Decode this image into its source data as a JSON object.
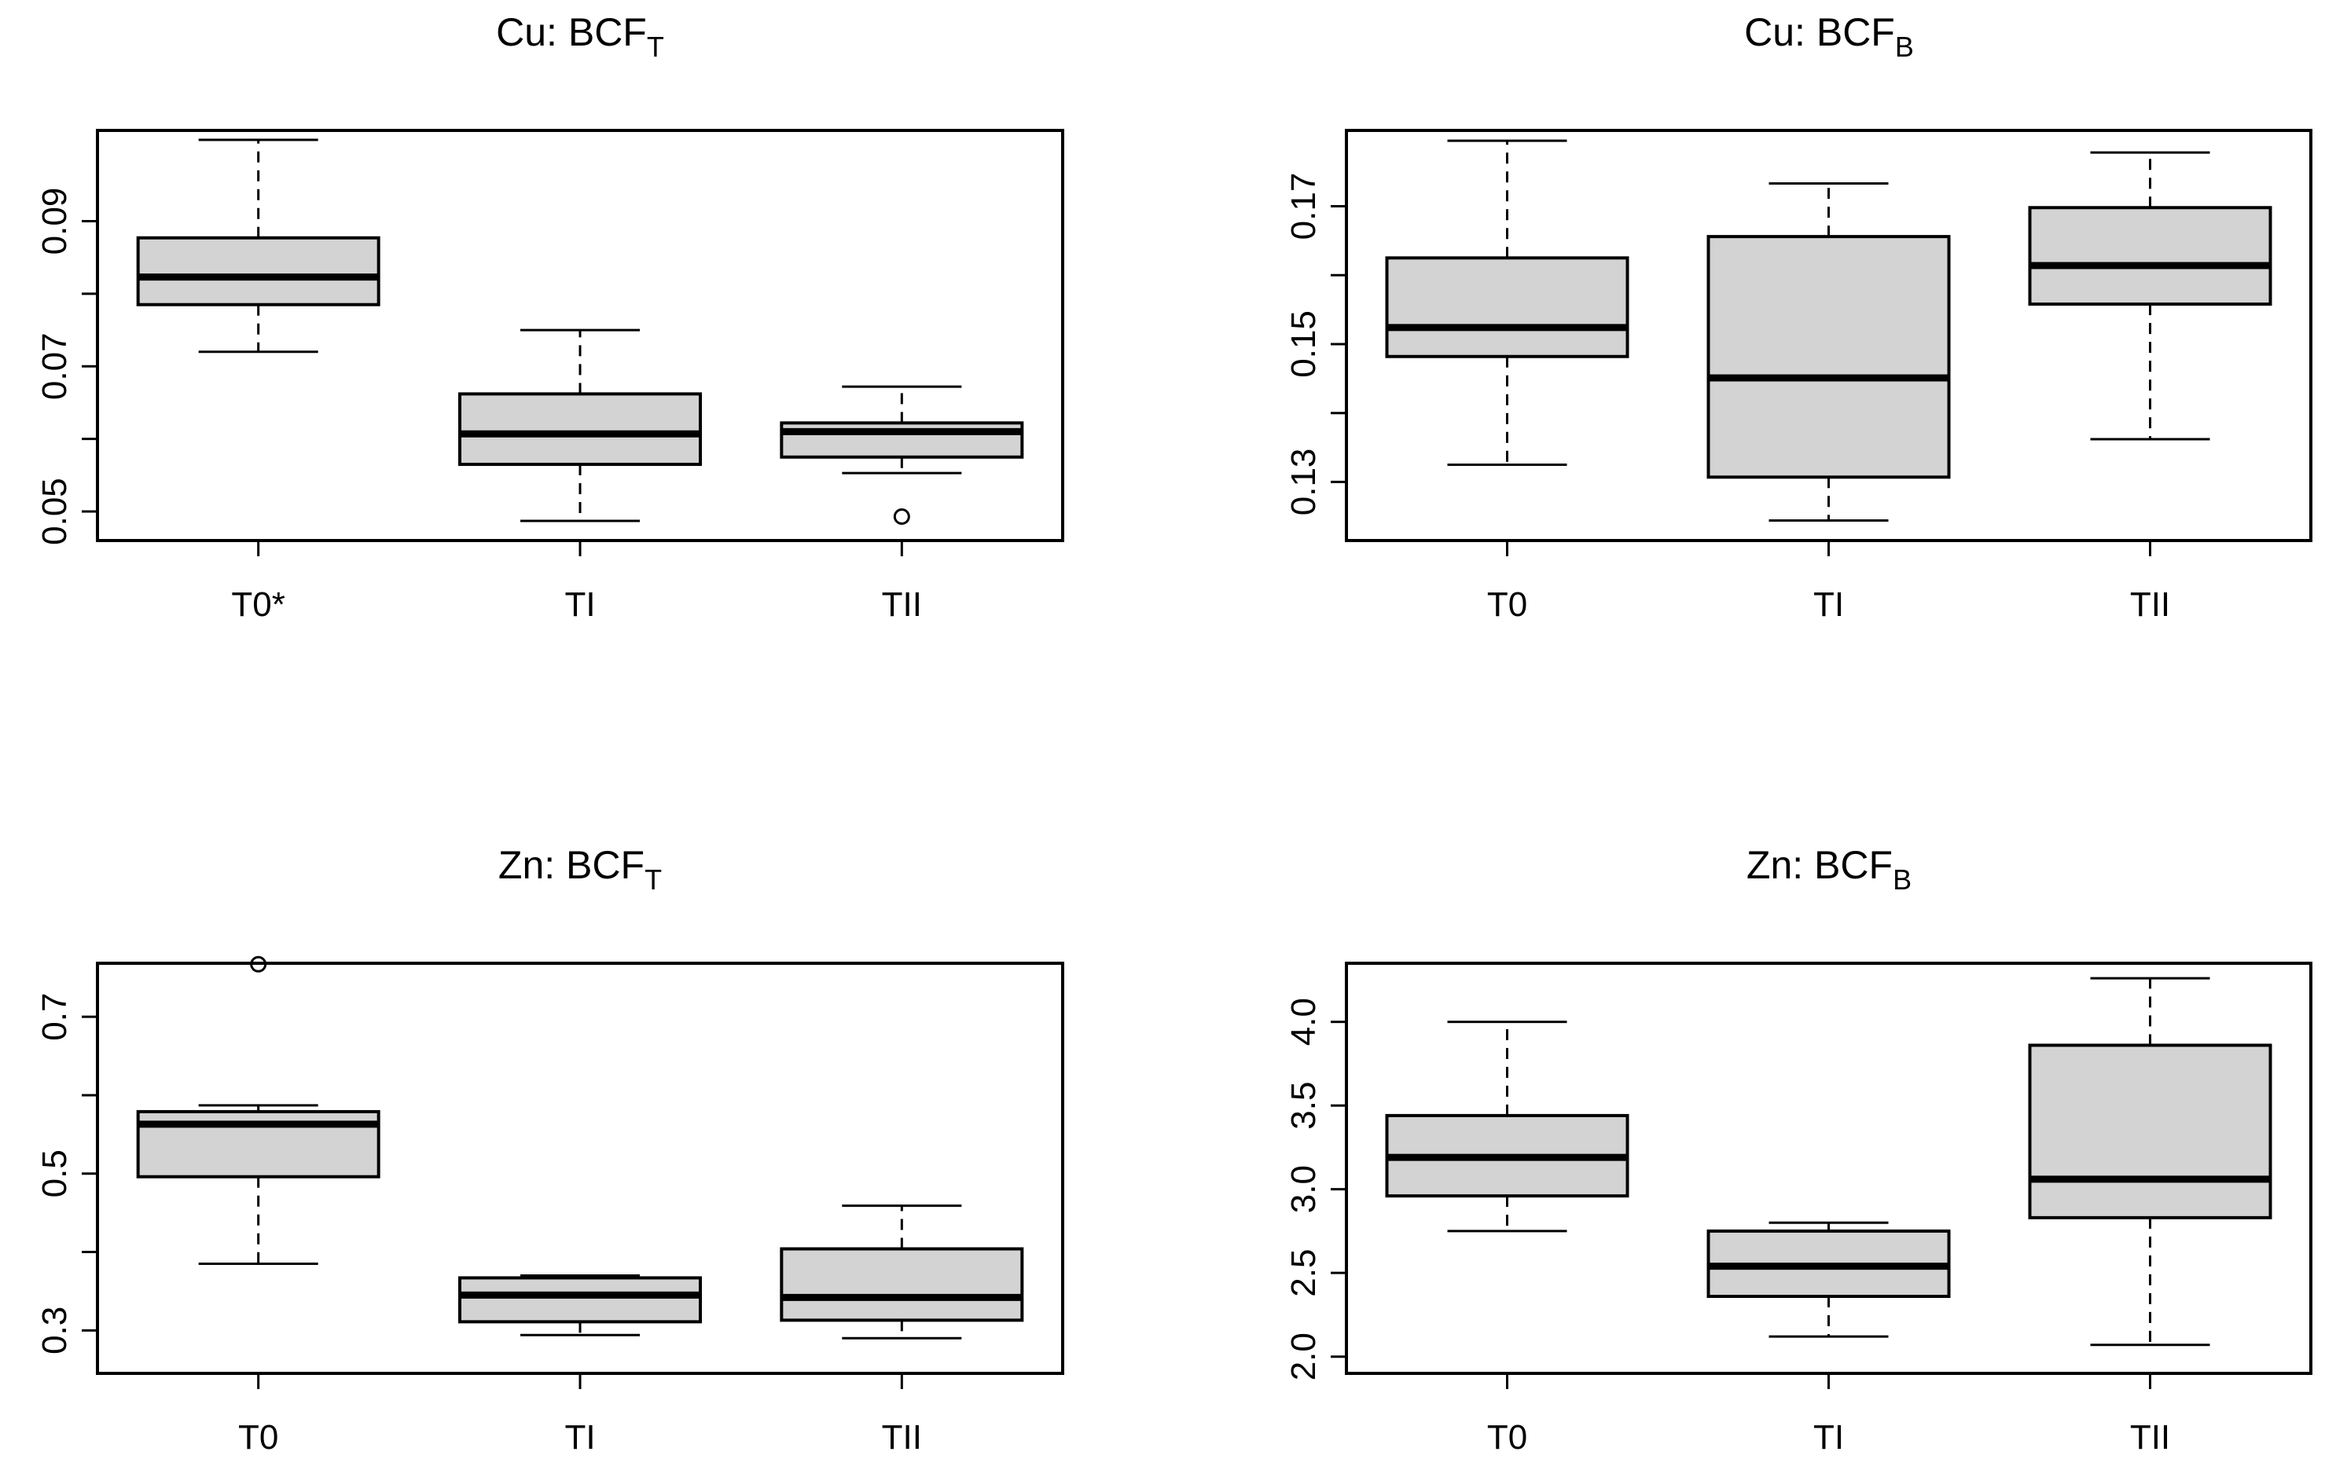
{
  "chart_data": [
    {
      "type": "box",
      "title": "Cu: BCF",
      "title_subscript": "T",
      "categories": [
        "T0*",
        "TI",
        "TII"
      ],
      "ylim": [
        0.046,
        0.1025
      ],
      "yticks": [
        0.05,
        0.06,
        0.07,
        0.08,
        0.09
      ],
      "ytick_labels": [
        "0.05",
        "",
        "0.07",
        "",
        "0.09"
      ],
      "boxes": [
        {
          "min": 0.072,
          "q1": 0.0785,
          "median": 0.0823,
          "q3": 0.0877,
          "max": 0.1012,
          "outliers": []
        },
        {
          "min": 0.0487,
          "q1": 0.0565,
          "median": 0.0607,
          "q3": 0.0662,
          "max": 0.075,
          "outliers": []
        },
        {
          "min": 0.0553,
          "q1": 0.0575,
          "median": 0.061,
          "q3": 0.0622,
          "max": 0.0672,
          "outliers": [
            0.0493
          ]
        }
      ]
    },
    {
      "type": "box",
      "title": "Cu: BCF",
      "title_subscript": "B",
      "categories": [
        "T0",
        "TI",
        "TII"
      ],
      "ylim": [
        0.1215,
        0.181
      ],
      "yticks": [
        0.13,
        0.14,
        0.15,
        0.16,
        0.17
      ],
      "ytick_labels": [
        "0.13",
        "",
        "0.15",
        "",
        "0.17"
      ],
      "boxes": [
        {
          "min": 0.1325,
          "q1": 0.1482,
          "median": 0.1524,
          "q3": 0.1625,
          "max": 0.1795,
          "outliers": []
        },
        {
          "min": 0.1244,
          "q1": 0.1307,
          "median": 0.1451,
          "q3": 0.1656,
          "max": 0.1733,
          "outliers": []
        },
        {
          "min": 0.1362,
          "q1": 0.1558,
          "median": 0.1614,
          "q3": 0.1698,
          "max": 0.1778,
          "outliers": []
        }
      ]
    },
    {
      "type": "box",
      "title": "Zn: BCF",
      "title_subscript": "T",
      "categories": [
        "T0",
        "TI",
        "TII"
      ],
      "ylim": [
        0.2452,
        0.7683
      ],
      "yticks": [
        0.3,
        0.4,
        0.5,
        0.6,
        0.7
      ],
      "ytick_labels": [
        "0.3",
        "",
        "0.5",
        "",
        "0.7"
      ],
      "boxes": [
        {
          "min": 0.385,
          "q1": 0.496,
          "median": 0.563,
          "q3": 0.579,
          "max": 0.587,
          "outliers": [
            0.767
          ]
        },
        {
          "min": 0.294,
          "q1": 0.311,
          "median": 0.345,
          "q3": 0.367,
          "max": 0.37,
          "outliers": []
        },
        {
          "min": 0.29,
          "q1": 0.313,
          "median": 0.342,
          "q3": 0.404,
          "max": 0.459,
          "outliers": []
        }
      ]
    },
    {
      "type": "box",
      "title": "Zn: BCF",
      "title_subscript": "B",
      "categories": [
        "T0",
        "TI",
        "TII"
      ],
      "ylim": [
        1.9,
        4.35
      ],
      "yticks": [
        2.0,
        2.5,
        3.0,
        3.5,
        4.0
      ],
      "ytick_labels": [
        "2.0",
        "2.5",
        "3.0",
        "3.5",
        "4.0"
      ],
      "boxes": [
        {
          "min": 2.75,
          "q1": 2.96,
          "median": 3.19,
          "q3": 3.44,
          "max": 4.0,
          "outliers": []
        },
        {
          "min": 2.12,
          "q1": 2.36,
          "median": 2.54,
          "q3": 2.75,
          "max": 2.8,
          "outliers": []
        },
        {
          "min": 2.07,
          "q1": 2.83,
          "median": 3.06,
          "q3": 3.86,
          "max": 4.26,
          "outliers": []
        }
      ]
    }
  ]
}
